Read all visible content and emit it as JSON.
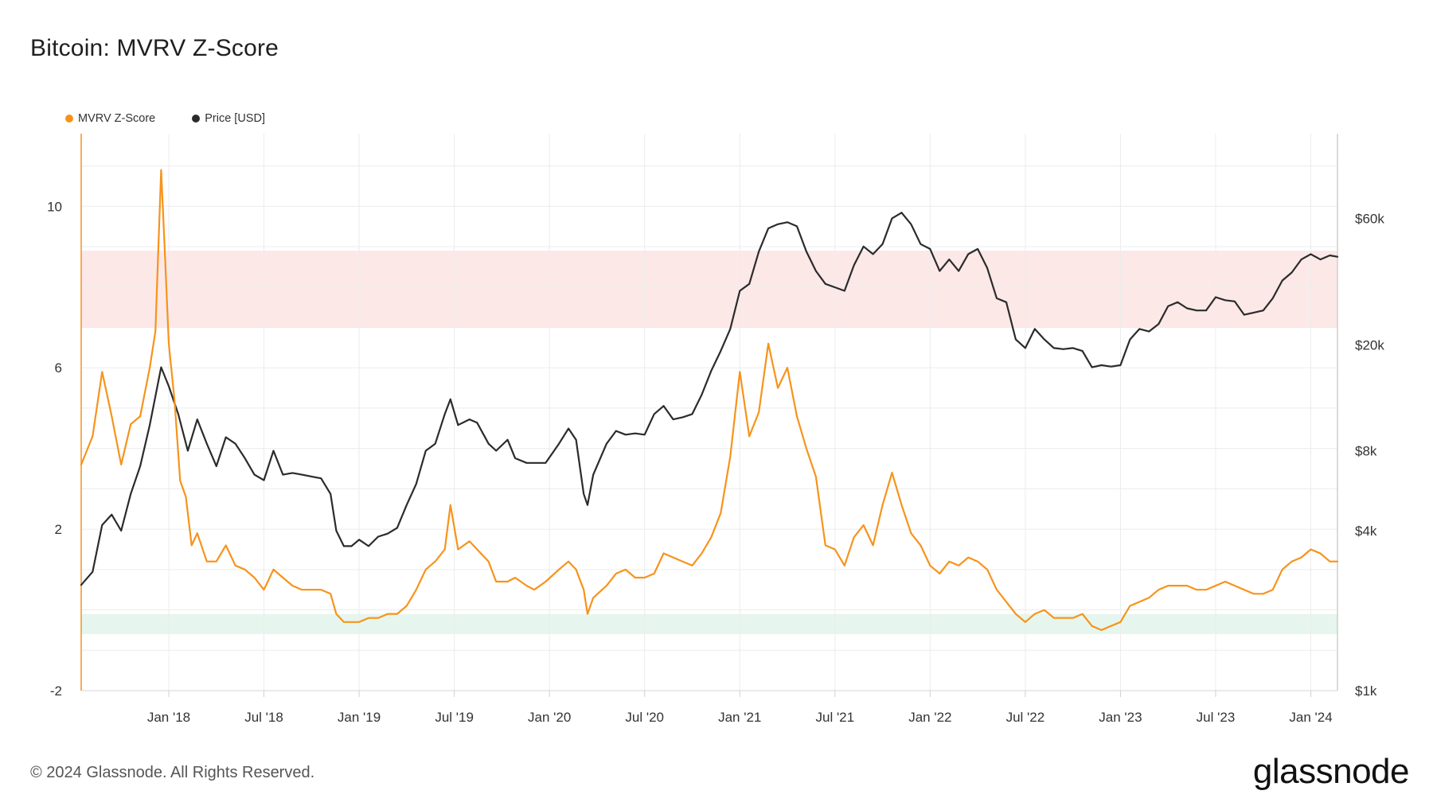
{
  "header": {
    "title": "Bitcoin: MVRV Z-Score"
  },
  "legend": [
    {
      "label": "MVRV Z-Score",
      "color": "#f7931a"
    },
    {
      "label": "Price [USD]",
      "color": "#2b2b2b"
    }
  ],
  "footer": {
    "copyright": "© 2024 Glassnode. All Rights Reserved.",
    "brand": "glassnode"
  },
  "chart_data": {
    "type": "line",
    "title": "Bitcoin: MVRV Z-Score",
    "x_ticks": [
      "Jan '18",
      "Jul '18",
      "Jan '19",
      "Jul '19",
      "Jan '20",
      "Jul '20",
      "Jan '21",
      "Jul '21",
      "Jan '22",
      "Jul '22",
      "Jan '23",
      "Jul '23",
      "Jan '24"
    ],
    "x_tick_years": [
      2018.0,
      2018.5,
      2019.0,
      2019.5,
      2020.0,
      2020.5,
      2021.0,
      2021.5,
      2022.0,
      2022.5,
      2023.0,
      2023.5,
      2024.0
    ],
    "x_range": [
      2017.54,
      2024.14
    ],
    "y_left": {
      "ticks": [
        10,
        6,
        2,
        -2
      ],
      "range": [
        -2,
        11.8
      ]
    },
    "y_right": {
      "ticks": [
        "$60k",
        "$20k",
        "$8k",
        "$4k",
        "$1k"
      ],
      "tick_values": [
        60000,
        20000,
        8000,
        4000,
        1000
      ],
      "range": [
        1000,
        125000
      ],
      "scale": "log"
    },
    "bands": [
      {
        "name": "overvalued-zone",
        "from": 7.0,
        "to": 8.9,
        "color": "#fde8e8"
      },
      {
        "name": "undervalued-zone",
        "from": -0.6,
        "to": -0.1,
        "color": "#e6f6ee"
      }
    ],
    "series": [
      {
        "name": "MVRV Z-Score",
        "axis": "left",
        "color": "#f7931a",
        "points": [
          [
            2017.54,
            3.6
          ],
          [
            2017.6,
            4.3
          ],
          [
            2017.65,
            5.9
          ],
          [
            2017.7,
            4.8
          ],
          [
            2017.75,
            3.6
          ],
          [
            2017.8,
            4.6
          ],
          [
            2017.85,
            4.8
          ],
          [
            2017.9,
            6.0
          ],
          [
            2017.93,
            6.9
          ],
          [
            2017.96,
            10.9
          ],
          [
            2017.98,
            8.8
          ],
          [
            2018.0,
            6.6
          ],
          [
            2018.03,
            5.2
          ],
          [
            2018.06,
            3.2
          ],
          [
            2018.09,
            2.8
          ],
          [
            2018.12,
            1.6
          ],
          [
            2018.15,
            1.9
          ],
          [
            2018.2,
            1.2
          ],
          [
            2018.25,
            1.2
          ],
          [
            2018.3,
            1.6
          ],
          [
            2018.35,
            1.1
          ],
          [
            2018.4,
            1.0
          ],
          [
            2018.45,
            0.8
          ],
          [
            2018.5,
            0.5
          ],
          [
            2018.55,
            1.0
          ],
          [
            2018.6,
            0.8
          ],
          [
            2018.65,
            0.6
          ],
          [
            2018.7,
            0.5
          ],
          [
            2018.75,
            0.5
          ],
          [
            2018.8,
            0.5
          ],
          [
            2018.85,
            0.4
          ],
          [
            2018.88,
            -0.1
          ],
          [
            2018.92,
            -0.3
          ],
          [
            2018.95,
            -0.3
          ],
          [
            2019.0,
            -0.3
          ],
          [
            2019.05,
            -0.2
          ],
          [
            2019.1,
            -0.2
          ],
          [
            2019.15,
            -0.1
          ],
          [
            2019.2,
            -0.1
          ],
          [
            2019.25,
            0.1
          ],
          [
            2019.3,
            0.5
          ],
          [
            2019.35,
            1.0
          ],
          [
            2019.4,
            1.2
          ],
          [
            2019.45,
            1.5
          ],
          [
            2019.48,
            2.6
          ],
          [
            2019.52,
            1.5
          ],
          [
            2019.58,
            1.7
          ],
          [
            2019.62,
            1.5
          ],
          [
            2019.68,
            1.2
          ],
          [
            2019.72,
            0.7
          ],
          [
            2019.78,
            0.7
          ],
          [
            2019.82,
            0.8
          ],
          [
            2019.88,
            0.6
          ],
          [
            2019.92,
            0.5
          ],
          [
            2019.98,
            0.7
          ],
          [
            2020.05,
            1.0
          ],
          [
            2020.1,
            1.2
          ],
          [
            2020.14,
            1.0
          ],
          [
            2020.18,
            0.5
          ],
          [
            2020.2,
            -0.1
          ],
          [
            2020.23,
            0.3
          ],
          [
            2020.3,
            0.6
          ],
          [
            2020.35,
            0.9
          ],
          [
            2020.4,
            1.0
          ],
          [
            2020.45,
            0.8
          ],
          [
            2020.5,
            0.8
          ],
          [
            2020.55,
            0.9
          ],
          [
            2020.6,
            1.4
          ],
          [
            2020.65,
            1.3
          ],
          [
            2020.7,
            1.2
          ],
          [
            2020.75,
            1.1
          ],
          [
            2020.8,
            1.4
          ],
          [
            2020.85,
            1.8
          ],
          [
            2020.9,
            2.4
          ],
          [
            2020.95,
            3.8
          ],
          [
            2021.0,
            5.9
          ],
          [
            2021.05,
            4.3
          ],
          [
            2021.1,
            4.9
          ],
          [
            2021.15,
            6.6
          ],
          [
            2021.2,
            5.5
          ],
          [
            2021.25,
            6.0
          ],
          [
            2021.3,
            4.8
          ],
          [
            2021.35,
            4.0
          ],
          [
            2021.4,
            3.3
          ],
          [
            2021.45,
            1.6
          ],
          [
            2021.5,
            1.5
          ],
          [
            2021.55,
            1.1
          ],
          [
            2021.6,
            1.8
          ],
          [
            2021.65,
            2.1
          ],
          [
            2021.7,
            1.6
          ],
          [
            2021.75,
            2.6
          ],
          [
            2021.8,
            3.4
          ],
          [
            2021.85,
            2.6
          ],
          [
            2021.9,
            1.9
          ],
          [
            2021.95,
            1.6
          ],
          [
            2022.0,
            1.1
          ],
          [
            2022.05,
            0.9
          ],
          [
            2022.1,
            1.2
          ],
          [
            2022.15,
            1.1
          ],
          [
            2022.2,
            1.3
          ],
          [
            2022.25,
            1.2
          ],
          [
            2022.3,
            1.0
          ],
          [
            2022.35,
            0.5
          ],
          [
            2022.4,
            0.2
          ],
          [
            2022.45,
            -0.1
          ],
          [
            2022.5,
            -0.3
          ],
          [
            2022.55,
            -0.1
          ],
          [
            2022.6,
            0.0
          ],
          [
            2022.65,
            -0.2
          ],
          [
            2022.7,
            -0.2
          ],
          [
            2022.75,
            -0.2
          ],
          [
            2022.8,
            -0.1
          ],
          [
            2022.85,
            -0.4
          ],
          [
            2022.9,
            -0.5
          ],
          [
            2022.95,
            -0.4
          ],
          [
            2023.0,
            -0.3
          ],
          [
            2023.05,
            0.1
          ],
          [
            2023.1,
            0.2
          ],
          [
            2023.15,
            0.3
          ],
          [
            2023.2,
            0.5
          ],
          [
            2023.25,
            0.6
          ],
          [
            2023.3,
            0.6
          ],
          [
            2023.35,
            0.6
          ],
          [
            2023.4,
            0.5
          ],
          [
            2023.45,
            0.5
          ],
          [
            2023.5,
            0.6
          ],
          [
            2023.55,
            0.7
          ],
          [
            2023.6,
            0.6
          ],
          [
            2023.65,
            0.5
          ],
          [
            2023.7,
            0.4
          ],
          [
            2023.75,
            0.4
          ],
          [
            2023.8,
            0.5
          ],
          [
            2023.85,
            1.0
          ],
          [
            2023.9,
            1.2
          ],
          [
            2023.95,
            1.3
          ],
          [
            2024.0,
            1.5
          ],
          [
            2024.05,
            1.4
          ],
          [
            2024.1,
            1.2
          ],
          [
            2024.14,
            1.2
          ]
        ]
      },
      {
        "name": "Price [USD]",
        "axis": "right",
        "color": "#2b2b2b",
        "points": [
          [
            2017.54,
            2500
          ],
          [
            2017.6,
            2800
          ],
          [
            2017.65,
            4200
          ],
          [
            2017.7,
            4600
          ],
          [
            2017.75,
            4000
          ],
          [
            2017.8,
            5500
          ],
          [
            2017.85,
            7000
          ],
          [
            2017.9,
            10000
          ],
          [
            2017.96,
            16500
          ],
          [
            2018.0,
            14000
          ],
          [
            2018.05,
            11000
          ],
          [
            2018.1,
            8000
          ],
          [
            2018.15,
            10500
          ],
          [
            2018.2,
            8500
          ],
          [
            2018.25,
            7000
          ],
          [
            2018.3,
            9000
          ],
          [
            2018.35,
            8500
          ],
          [
            2018.4,
            7500
          ],
          [
            2018.45,
            6500
          ],
          [
            2018.5,
            6200
          ],
          [
            2018.55,
            8000
          ],
          [
            2018.6,
            6500
          ],
          [
            2018.65,
            6600
          ],
          [
            2018.7,
            6500
          ],
          [
            2018.75,
            6400
          ],
          [
            2018.8,
            6300
          ],
          [
            2018.85,
            5500
          ],
          [
            2018.88,
            4000
          ],
          [
            2018.92,
            3500
          ],
          [
            2018.96,
            3500
          ],
          [
            2019.0,
            3700
          ],
          [
            2019.05,
            3500
          ],
          [
            2019.1,
            3800
          ],
          [
            2019.15,
            3900
          ],
          [
            2019.2,
            4100
          ],
          [
            2019.25,
            5000
          ],
          [
            2019.3,
            6000
          ],
          [
            2019.35,
            8000
          ],
          [
            2019.4,
            8500
          ],
          [
            2019.45,
            11000
          ],
          [
            2019.48,
            12500
          ],
          [
            2019.52,
            10000
          ],
          [
            2019.58,
            10500
          ],
          [
            2019.62,
            10200
          ],
          [
            2019.68,
            8500
          ],
          [
            2019.72,
            8000
          ],
          [
            2019.78,
            8800
          ],
          [
            2019.82,
            7500
          ],
          [
            2019.88,
            7200
          ],
          [
            2019.92,
            7200
          ],
          [
            2019.98,
            7200
          ],
          [
            2020.05,
            8500
          ],
          [
            2020.1,
            9700
          ],
          [
            2020.14,
            8800
          ],
          [
            2020.18,
            5500
          ],
          [
            2020.2,
            5000
          ],
          [
            2020.23,
            6500
          ],
          [
            2020.3,
            8500
          ],
          [
            2020.35,
            9500
          ],
          [
            2020.4,
            9200
          ],
          [
            2020.45,
            9300
          ],
          [
            2020.5,
            9200
          ],
          [
            2020.55,
            11000
          ],
          [
            2020.6,
            11800
          ],
          [
            2020.65,
            10500
          ],
          [
            2020.7,
            10700
          ],
          [
            2020.75,
            11000
          ],
          [
            2020.8,
            13000
          ],
          [
            2020.85,
            16000
          ],
          [
            2020.9,
            19000
          ],
          [
            2020.95,
            23000
          ],
          [
            2021.0,
            32000
          ],
          [
            2021.05,
            34000
          ],
          [
            2021.1,
            45000
          ],
          [
            2021.15,
            55000
          ],
          [
            2021.2,
            57000
          ],
          [
            2021.25,
            58000
          ],
          [
            2021.3,
            56000
          ],
          [
            2021.35,
            45000
          ],
          [
            2021.4,
            38000
          ],
          [
            2021.45,
            34000
          ],
          [
            2021.5,
            33000
          ],
          [
            2021.55,
            32000
          ],
          [
            2021.6,
            40000
          ],
          [
            2021.65,
            47000
          ],
          [
            2021.7,
            44000
          ],
          [
            2021.75,
            48000
          ],
          [
            2021.8,
            60000
          ],
          [
            2021.85,
            63000
          ],
          [
            2021.9,
            57000
          ],
          [
            2021.95,
            48000
          ],
          [
            2022.0,
            46000
          ],
          [
            2022.05,
            38000
          ],
          [
            2022.1,
            42000
          ],
          [
            2022.15,
            38000
          ],
          [
            2022.2,
            44000
          ],
          [
            2022.25,
            46000
          ],
          [
            2022.3,
            39000
          ],
          [
            2022.35,
            30000
          ],
          [
            2022.4,
            29000
          ],
          [
            2022.45,
            21000
          ],
          [
            2022.5,
            19500
          ],
          [
            2022.55,
            23000
          ],
          [
            2022.6,
            21000
          ],
          [
            2022.65,
            19500
          ],
          [
            2022.7,
            19300
          ],
          [
            2022.75,
            19500
          ],
          [
            2022.8,
            19000
          ],
          [
            2022.85,
            16500
          ],
          [
            2022.9,
            16800
          ],
          [
            2022.95,
            16600
          ],
          [
            2023.0,
            16800
          ],
          [
            2023.05,
            21000
          ],
          [
            2023.1,
            23000
          ],
          [
            2023.15,
            22500
          ],
          [
            2023.2,
            24000
          ],
          [
            2023.25,
            28000
          ],
          [
            2023.3,
            29000
          ],
          [
            2023.35,
            27500
          ],
          [
            2023.4,
            27000
          ],
          [
            2023.45,
            27000
          ],
          [
            2023.5,
            30300
          ],
          [
            2023.55,
            29500
          ],
          [
            2023.6,
            29200
          ],
          [
            2023.65,
            26000
          ],
          [
            2023.7,
            26500
          ],
          [
            2023.75,
            27000
          ],
          [
            2023.8,
            30000
          ],
          [
            2023.85,
            35000
          ],
          [
            2023.9,
            37500
          ],
          [
            2023.95,
            42000
          ],
          [
            2024.0,
            44000
          ],
          [
            2024.05,
            42000
          ],
          [
            2024.1,
            43500
          ],
          [
            2024.14,
            43000
          ]
        ]
      }
    ]
  }
}
